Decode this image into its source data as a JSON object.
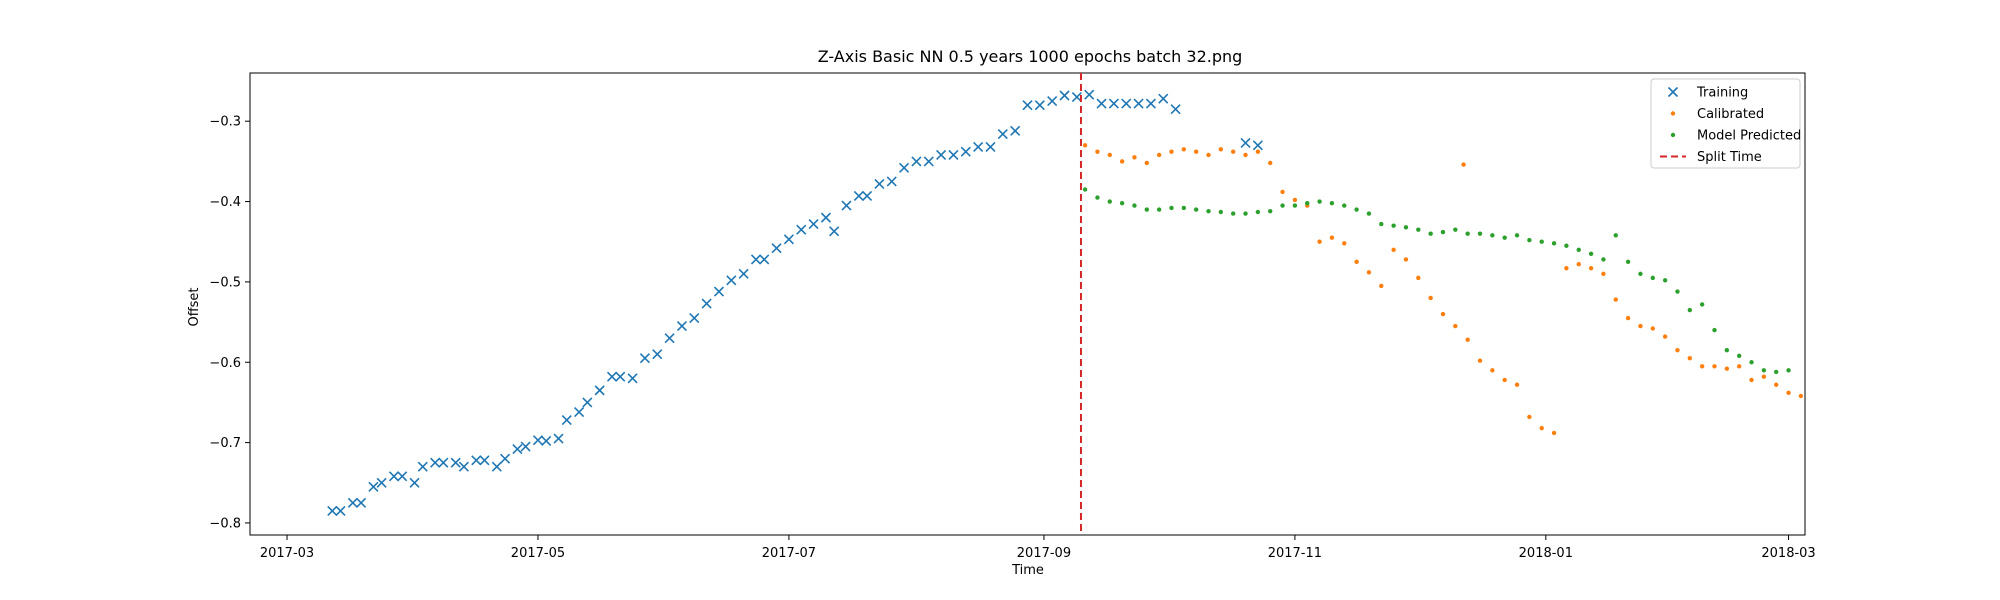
{
  "chart_data": {
    "type": "scatter",
    "title": "Z-Axis Basic NN 0.5 years 1000 epochs batch 32.png",
    "xlabel": "Time",
    "ylabel": "Offset",
    "xlim": [
      "2017-02-20",
      "2018-03-05"
    ],
    "ylim": [
      -0.815,
      -0.24
    ],
    "x_ticks": [
      "2017-03",
      "2017-05",
      "2017-07",
      "2017-09",
      "2017-11",
      "2018-01",
      "2018-03"
    ],
    "y_ticks": [
      -0.8,
      -0.7,
      -0.6,
      -0.5,
      -0.4,
      -0.3
    ],
    "grid": false,
    "legend_position": "top-right",
    "split_time": "2017-09-10",
    "series": [
      {
        "name": "Training",
        "marker": "x",
        "color": "#1f77b4",
        "points": [
          [
            "2017-03-12",
            -0.785
          ],
          [
            "2017-03-14",
            -0.785
          ],
          [
            "2017-03-17",
            -0.775
          ],
          [
            "2017-03-19",
            -0.775
          ],
          [
            "2017-03-22",
            -0.755
          ],
          [
            "2017-03-24",
            -0.75
          ],
          [
            "2017-03-27",
            -0.742
          ],
          [
            "2017-03-29",
            -0.742
          ],
          [
            "2017-04-01",
            -0.75
          ],
          [
            "2017-04-03",
            -0.73
          ],
          [
            "2017-04-06",
            -0.725
          ],
          [
            "2017-04-08",
            -0.725
          ],
          [
            "2017-04-11",
            -0.725
          ],
          [
            "2017-04-13",
            -0.73
          ],
          [
            "2017-04-16",
            -0.722
          ],
          [
            "2017-04-18",
            -0.722
          ],
          [
            "2017-04-21",
            -0.73
          ],
          [
            "2017-04-23",
            -0.72
          ],
          [
            "2017-04-26",
            -0.708
          ],
          [
            "2017-04-28",
            -0.705
          ],
          [
            "2017-05-01",
            -0.697
          ],
          [
            "2017-05-03",
            -0.698
          ],
          [
            "2017-05-06",
            -0.695
          ],
          [
            "2017-05-08",
            -0.672
          ],
          [
            "2017-05-11",
            -0.662
          ],
          [
            "2017-05-13",
            -0.65
          ],
          [
            "2017-05-16",
            -0.635
          ],
          [
            "2017-05-19",
            -0.618
          ],
          [
            "2017-05-21",
            -0.618
          ],
          [
            "2017-05-24",
            -0.62
          ],
          [
            "2017-05-27",
            -0.595
          ],
          [
            "2017-05-30",
            -0.59
          ],
          [
            "2017-06-02",
            -0.57
          ],
          [
            "2017-06-05",
            -0.555
          ],
          [
            "2017-06-08",
            -0.545
          ],
          [
            "2017-06-11",
            -0.527
          ],
          [
            "2017-06-14",
            -0.512
          ],
          [
            "2017-06-17",
            -0.498
          ],
          [
            "2017-06-20",
            -0.49
          ],
          [
            "2017-06-23",
            -0.472
          ],
          [
            "2017-06-25",
            -0.472
          ],
          [
            "2017-06-28",
            -0.458
          ],
          [
            "2017-07-01",
            -0.447
          ],
          [
            "2017-07-04",
            -0.435
          ],
          [
            "2017-07-07",
            -0.428
          ],
          [
            "2017-07-10",
            -0.42
          ],
          [
            "2017-07-12",
            -0.437
          ],
          [
            "2017-07-15",
            -0.405
          ],
          [
            "2017-07-18",
            -0.393
          ],
          [
            "2017-07-20",
            -0.393
          ],
          [
            "2017-07-23",
            -0.378
          ],
          [
            "2017-07-26",
            -0.375
          ],
          [
            "2017-07-29",
            -0.358
          ],
          [
            "2017-08-01",
            -0.35
          ],
          [
            "2017-08-04",
            -0.35
          ],
          [
            "2017-08-07",
            -0.342
          ],
          [
            "2017-08-10",
            -0.342
          ],
          [
            "2017-08-13",
            -0.338
          ],
          [
            "2017-08-16",
            -0.332
          ],
          [
            "2017-08-19",
            -0.332
          ],
          [
            "2017-08-22",
            -0.316
          ],
          [
            "2017-08-25",
            -0.312
          ],
          [
            "2017-08-28",
            -0.28
          ],
          [
            "2017-08-31",
            -0.28
          ],
          [
            "2017-09-03",
            -0.275
          ],
          [
            "2017-09-06",
            -0.268
          ],
          [
            "2017-09-09",
            -0.27
          ],
          [
            "2017-09-12",
            -0.267
          ],
          [
            "2017-09-15",
            -0.278
          ],
          [
            "2017-09-18",
            -0.278
          ],
          [
            "2017-09-21",
            -0.278
          ],
          [
            "2017-09-24",
            -0.278
          ],
          [
            "2017-09-27",
            -0.278
          ],
          [
            "2017-09-30",
            -0.272
          ],
          [
            "2017-10-03",
            -0.285
          ],
          [
            "2017-10-20",
            -0.327
          ],
          [
            "2017-10-23",
            -0.33
          ]
        ]
      },
      {
        "name": "Calibrated",
        "marker": "dot",
        "color": "#ff7f0e",
        "points": [
          [
            "2017-09-11",
            -0.33
          ],
          [
            "2017-09-14",
            -0.338
          ],
          [
            "2017-09-17",
            -0.342
          ],
          [
            "2017-09-20",
            -0.35
          ],
          [
            "2017-09-23",
            -0.345
          ],
          [
            "2017-09-26",
            -0.352
          ],
          [
            "2017-09-29",
            -0.342
          ],
          [
            "2017-10-02",
            -0.338
          ],
          [
            "2017-10-05",
            -0.335
          ],
          [
            "2017-10-08",
            -0.338
          ],
          [
            "2017-10-11",
            -0.342
          ],
          [
            "2017-10-14",
            -0.335
          ],
          [
            "2017-10-17",
            -0.338
          ],
          [
            "2017-10-20",
            -0.342
          ],
          [
            "2017-10-23",
            -0.338
          ],
          [
            "2017-10-26",
            -0.352
          ],
          [
            "2017-10-29",
            -0.388
          ],
          [
            "2017-11-01",
            -0.398
          ],
          [
            "2017-11-04",
            -0.405
          ],
          [
            "2017-11-07",
            -0.45
          ],
          [
            "2017-11-10",
            -0.445
          ],
          [
            "2017-11-13",
            -0.452
          ],
          [
            "2017-11-16",
            -0.475
          ],
          [
            "2017-11-19",
            -0.488
          ],
          [
            "2017-11-22",
            -0.505
          ],
          [
            "2017-11-25",
            -0.46
          ],
          [
            "2017-11-28",
            -0.472
          ],
          [
            "2017-12-01",
            -0.495
          ],
          [
            "2017-12-04",
            -0.52
          ],
          [
            "2017-12-07",
            -0.54
          ],
          [
            "2017-12-10",
            -0.555
          ],
          [
            "2017-12-13",
            -0.572
          ],
          [
            "2017-12-16",
            -0.598
          ],
          [
            "2017-12-19",
            -0.61
          ],
          [
            "2017-12-22",
            -0.622
          ],
          [
            "2017-12-25",
            -0.628
          ],
          [
            "2017-12-28",
            -0.668
          ],
          [
            "2017-12-31",
            -0.682
          ],
          [
            "2018-01-03",
            -0.688
          ],
          [
            "2017-12-12",
            -0.354
          ],
          [
            "2018-01-06",
            -0.483
          ],
          [
            "2018-01-09",
            -0.478
          ],
          [
            "2018-01-12",
            -0.483
          ],
          [
            "2018-01-15",
            -0.49
          ],
          [
            "2018-01-18",
            -0.522
          ],
          [
            "2018-01-21",
            -0.545
          ],
          [
            "2018-01-24",
            -0.555
          ],
          [
            "2018-01-27",
            -0.558
          ],
          [
            "2018-01-30",
            -0.568
          ],
          [
            "2018-02-02",
            -0.585
          ],
          [
            "2018-02-05",
            -0.595
          ],
          [
            "2018-02-08",
            -0.605
          ],
          [
            "2018-02-11",
            -0.605
          ],
          [
            "2018-02-14",
            -0.608
          ],
          [
            "2018-02-17",
            -0.605
          ],
          [
            "2018-02-20",
            -0.622
          ],
          [
            "2018-02-23",
            -0.618
          ],
          [
            "2018-02-26",
            -0.628
          ],
          [
            "2018-03-01",
            -0.638
          ],
          [
            "2018-03-04",
            -0.642
          ]
        ]
      },
      {
        "name": "Model Predicted",
        "marker": "dot",
        "color": "#2ca02c",
        "points": [
          [
            "2017-09-11",
            -0.385
          ],
          [
            "2017-09-14",
            -0.395
          ],
          [
            "2017-09-17",
            -0.4
          ],
          [
            "2017-09-20",
            -0.402
          ],
          [
            "2017-09-23",
            -0.405
          ],
          [
            "2017-09-26",
            -0.41
          ],
          [
            "2017-09-29",
            -0.41
          ],
          [
            "2017-10-02",
            -0.408
          ],
          [
            "2017-10-05",
            -0.408
          ],
          [
            "2017-10-08",
            -0.41
          ],
          [
            "2017-10-11",
            -0.412
          ],
          [
            "2017-10-14",
            -0.413
          ],
          [
            "2017-10-17",
            -0.415
          ],
          [
            "2017-10-20",
            -0.415
          ],
          [
            "2017-10-23",
            -0.413
          ],
          [
            "2017-10-26",
            -0.412
          ],
          [
            "2017-10-29",
            -0.405
          ],
          [
            "2017-11-01",
            -0.405
          ],
          [
            "2017-11-04",
            -0.402
          ],
          [
            "2017-11-07",
            -0.4
          ],
          [
            "2017-11-10",
            -0.402
          ],
          [
            "2017-11-13",
            -0.405
          ],
          [
            "2017-11-16",
            -0.41
          ],
          [
            "2017-11-19",
            -0.415
          ],
          [
            "2017-11-22",
            -0.428
          ],
          [
            "2017-11-25",
            -0.43
          ],
          [
            "2017-11-28",
            -0.432
          ],
          [
            "2017-12-01",
            -0.435
          ],
          [
            "2017-12-04",
            -0.44
          ],
          [
            "2017-12-07",
            -0.438
          ],
          [
            "2017-12-10",
            -0.435
          ],
          [
            "2017-12-13",
            -0.44
          ],
          [
            "2017-12-16",
            -0.44
          ],
          [
            "2017-12-19",
            -0.442
          ],
          [
            "2017-12-22",
            -0.445
          ],
          [
            "2017-12-25",
            -0.442
          ],
          [
            "2017-12-28",
            -0.448
          ],
          [
            "2017-12-31",
            -0.45
          ],
          [
            "2018-01-03",
            -0.452
          ],
          [
            "2018-01-06",
            -0.455
          ],
          [
            "2018-01-09",
            -0.46
          ],
          [
            "2018-01-12",
            -0.465
          ],
          [
            "2018-01-15",
            -0.472
          ],
          [
            "2018-01-18",
            -0.442
          ],
          [
            "2018-01-21",
            -0.475
          ],
          [
            "2018-01-24",
            -0.49
          ],
          [
            "2018-01-27",
            -0.495
          ],
          [
            "2018-01-30",
            -0.498
          ],
          [
            "2018-02-02",
            -0.512
          ],
          [
            "2018-02-05",
            -0.535
          ],
          [
            "2018-02-08",
            -0.528
          ],
          [
            "2018-02-11",
            -0.56
          ],
          [
            "2018-02-14",
            -0.585
          ],
          [
            "2018-02-17",
            -0.592
          ],
          [
            "2018-02-20",
            -0.6
          ],
          [
            "2018-02-23",
            -0.61
          ],
          [
            "2018-02-26",
            -0.612
          ],
          [
            "2018-03-01",
            -0.61
          ]
        ]
      }
    ]
  }
}
